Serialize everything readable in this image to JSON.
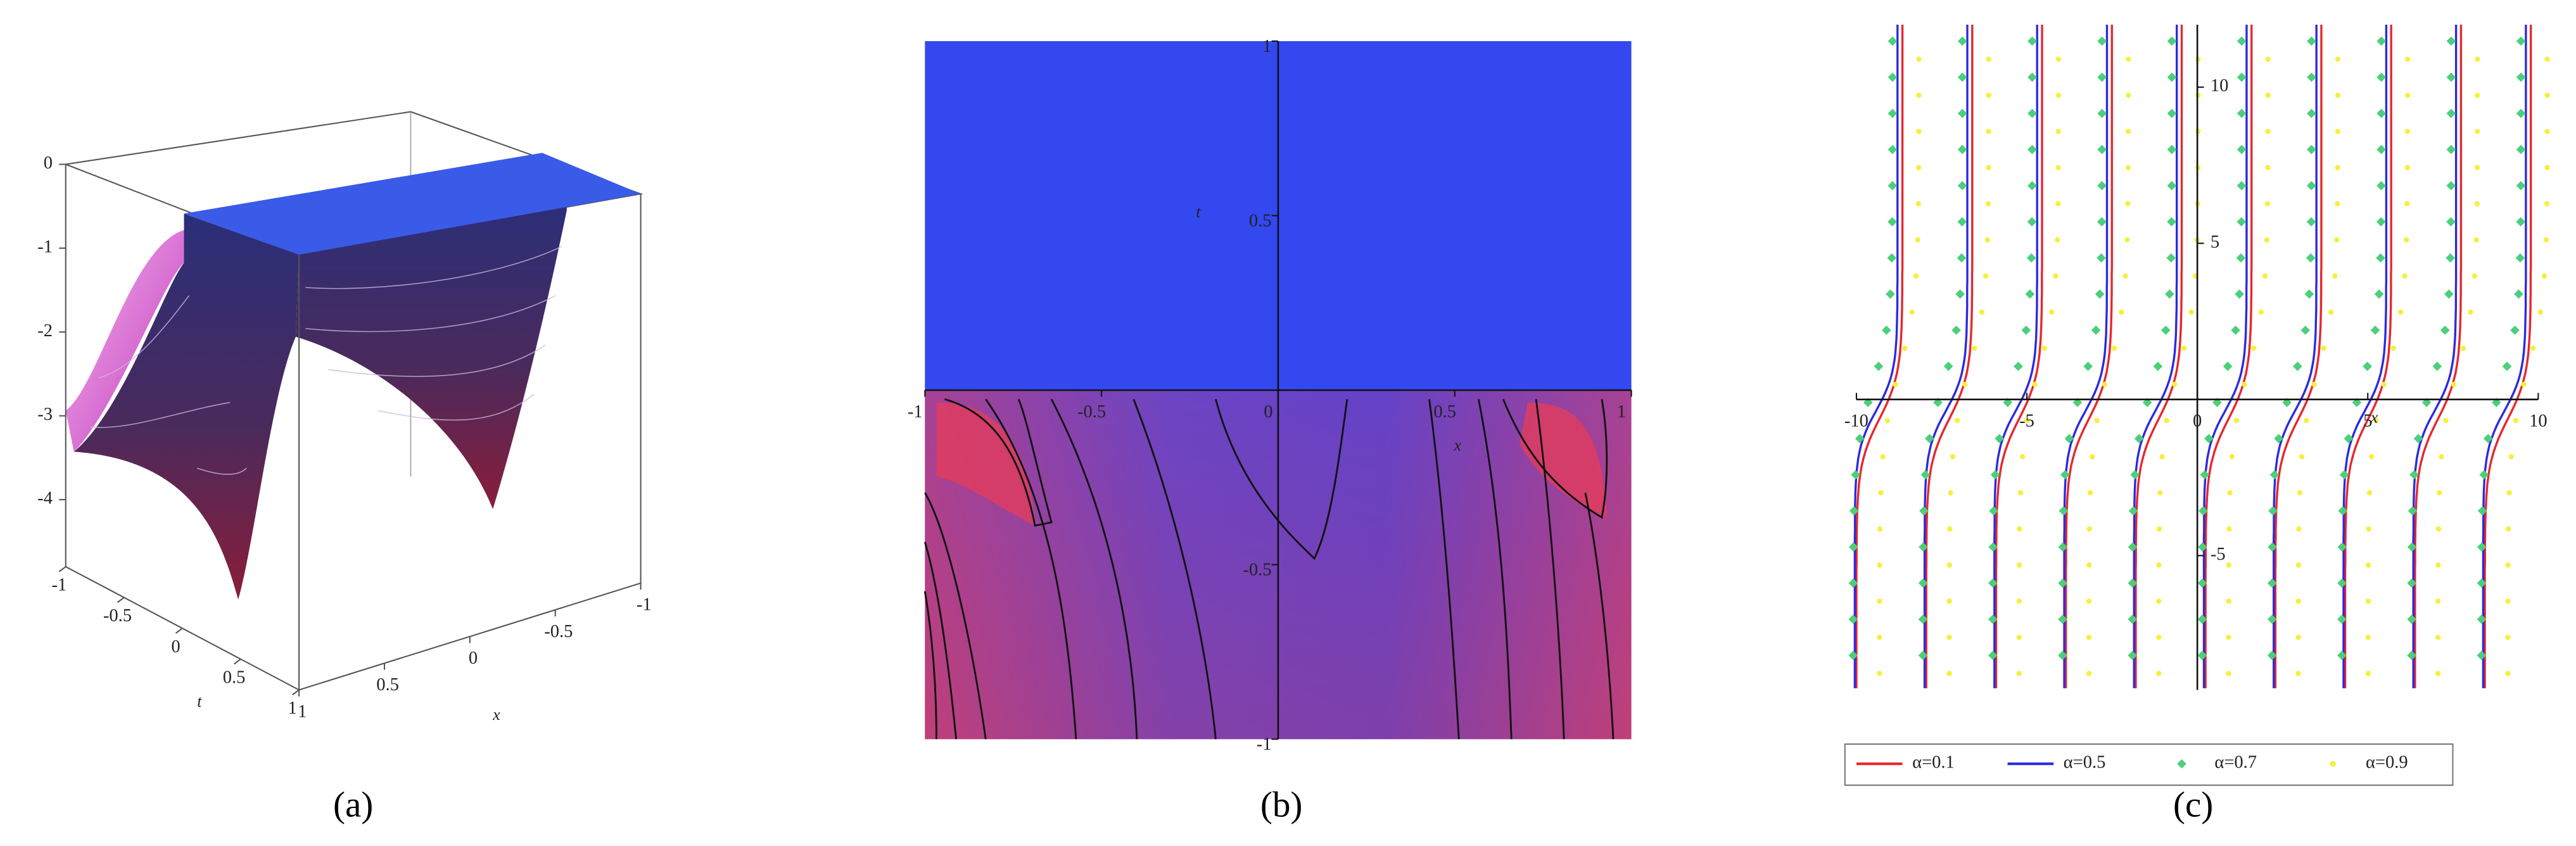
{
  "chart_data": [
    {
      "type": "surface3d",
      "panel": "(a)",
      "xlabel": "x",
      "ylabel": "t",
      "xlim": [
        -1,
        1
      ],
      "ylim": [
        -1,
        1
      ],
      "zlim": [
        -4.8,
        0
      ],
      "xticks": [
        1,
        0.5,
        0,
        -0.5,
        -1
      ],
      "yticks": [
        -1,
        -0.5,
        0,
        0.5,
        1
      ],
      "zticks": [
        0,
        -1,
        -2,
        -3,
        -4
      ],
      "color": "#3a5be8"
    },
    {
      "type": "contour",
      "panel": "(b)",
      "xlabel": "x",
      "ylabel": "t",
      "xlim": [
        -1,
        1
      ],
      "ylim": [
        -1,
        1
      ],
      "xticks": [
        -1,
        -0.5,
        0,
        0.5,
        1
      ],
      "yticks": [
        -1,
        -0.5,
        0.5,
        1
      ],
      "color": "#3448f0"
    },
    {
      "type": "line",
      "panel": "(c)",
      "xlabel": "x",
      "xlim": [
        -10,
        10
      ],
      "ylim": [
        -9.3,
        12
      ],
      "xticks": [
        -10,
        -5,
        0,
        5,
        10
      ],
      "yticks": [
        -5,
        5,
        10
      ],
      "series": [
        {
          "name": "α=0.1",
          "color": "#e8262c"
        },
        {
          "name": "α=0.5",
          "color": "#2a2ae0"
        },
        {
          "name": "α=0.7",
          "color": "#4ccf7a"
        },
        {
          "name": "α=0.9",
          "color": "#f5f03c"
        }
      ]
    }
  ]
}
